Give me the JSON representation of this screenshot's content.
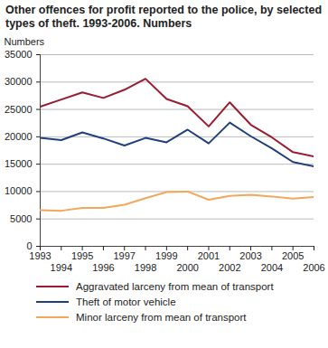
{
  "chart_data": {
    "type": "line",
    "title": "Other offences for profit reported to the police, by selected types of theft. 1993-2006. Numbers",
    "y_label": "Numbers",
    "x": [
      1993,
      1994,
      1995,
      1996,
      1997,
      1998,
      1999,
      2000,
      2001,
      2002,
      2003,
      2004,
      2005,
      2006
    ],
    "series": [
      {
        "name": "Aggravated larceny from mean of transport",
        "color": "#9b1b30",
        "values": [
          25500,
          26800,
          28100,
          27100,
          28600,
          30600,
          26900,
          25600,
          21900,
          26300,
          22200,
          19900,
          17200,
          16400
        ]
      },
      {
        "name": "Theft of motor vehicle",
        "color": "#1f3f7f",
        "values": [
          19800,
          19400,
          20800,
          19700,
          18400,
          19800,
          19000,
          21300,
          18800,
          22600,
          20100,
          17900,
          15400,
          14600
        ]
      },
      {
        "name": "Minor larceny from mean of transport",
        "color": "#f2a75a",
        "values": [
          6600,
          6500,
          7000,
          7000,
          7600,
          8800,
          9900,
          10000,
          8500,
          9200,
          9400,
          9100,
          8700,
          9000
        ]
      }
    ],
    "xlim": [
      1993,
      2006
    ],
    "xticks": [
      1993,
      1994,
      1995,
      1996,
      1997,
      1998,
      1999,
      2000,
      2001,
      2002,
      2003,
      2004,
      2005,
      2006
    ],
    "ylim": [
      0,
      35000
    ],
    "yticks": [
      0,
      5000,
      10000,
      15000,
      20000,
      25000,
      30000,
      35000
    ],
    "grid": true,
    "legend": "bottom"
  }
}
